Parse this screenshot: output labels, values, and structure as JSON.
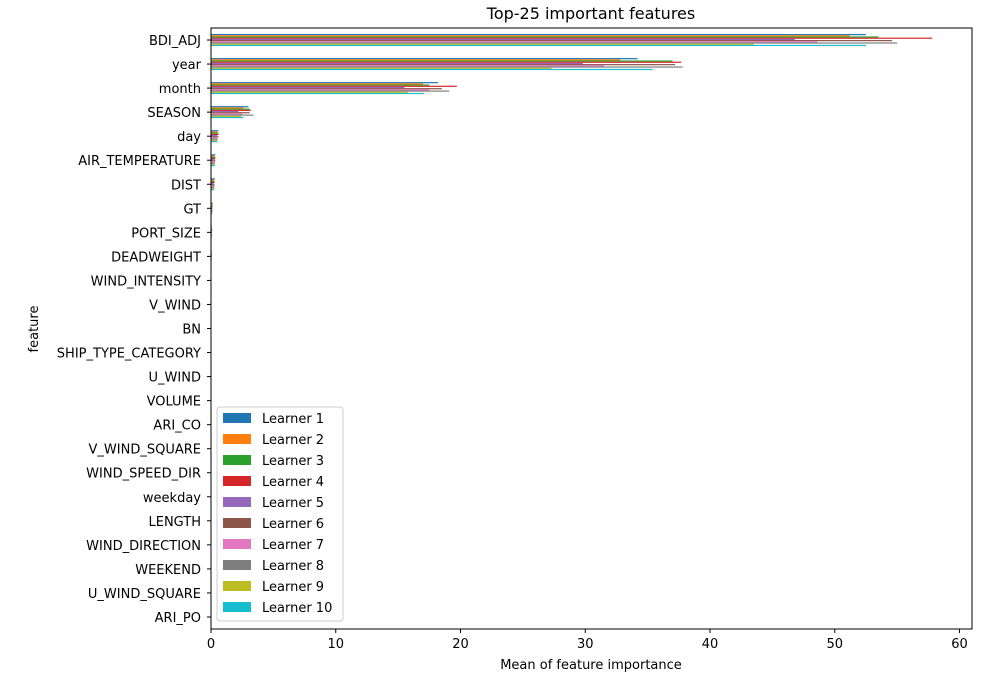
{
  "chart_data": {
    "type": "bar",
    "orientation": "horizontal",
    "title": "Top-25 important features",
    "xlabel": "Mean of feature importance",
    "ylabel": "feature",
    "xlim": [
      0,
      61
    ],
    "xticks": [
      0,
      10,
      20,
      30,
      40,
      50,
      60
    ],
    "grid": false,
    "legend_position": "lower-left",
    "categories": [
      "BDI_ADJ",
      "year",
      "month",
      "SEASON",
      "day",
      "AIR_TEMPERATURE",
      "DIST",
      "GT",
      "PORT_SIZE",
      "DEADWEIGHT",
      "WIND_INTENSITY",
      "V_WIND",
      "BN",
      "SHIP_TYPE_CATEGORY",
      "U_WIND",
      "VOLUME",
      "ARI_CO",
      "V_WIND_SQUARE",
      "WIND_SPEED_DIR",
      "weekday",
      "LENGTH",
      "WIND_DIRECTION",
      "WEEKEND",
      "U_WIND_SQUARE",
      "ARI_PO"
    ],
    "series": [
      {
        "name": "Learner 1",
        "color": "#1f77b4",
        "values": [
          52.5,
          34.2,
          18.2,
          3.0,
          0.6,
          0.35,
          0.3,
          0.12,
          0.08,
          0.06,
          0.03,
          0.02,
          0.02,
          0.01,
          0.01,
          0.01,
          0.01,
          0.01,
          0.01,
          0.01,
          0.01,
          0.0,
          0.0,
          0.0,
          0.0
        ]
      },
      {
        "name": "Learner 2",
        "color": "#ff7f0e",
        "values": [
          51.2,
          32.8,
          17.0,
          2.6,
          0.5,
          0.3,
          0.25,
          0.15,
          0.06,
          0.05,
          0.03,
          0.02,
          0.02,
          0.01,
          0.01,
          0.01,
          0.01,
          0.01,
          0.01,
          0.01,
          0.01,
          0.0,
          0.0,
          0.0,
          0.0
        ]
      },
      {
        "name": "Learner 3",
        "color": "#2ca02c",
        "values": [
          53.5,
          37.0,
          17.5,
          3.1,
          0.6,
          0.35,
          0.28,
          0.12,
          0.08,
          0.06,
          0.03,
          0.02,
          0.02,
          0.01,
          0.01,
          0.01,
          0.01,
          0.01,
          0.01,
          0.01,
          0.01,
          0.0,
          0.0,
          0.0,
          0.0
        ]
      },
      {
        "name": "Learner 4",
        "color": "#d62728",
        "values": [
          57.8,
          37.7,
          19.7,
          3.2,
          0.6,
          0.35,
          0.3,
          0.12,
          0.1,
          0.07,
          0.03,
          0.02,
          0.02,
          0.01,
          0.01,
          0.01,
          0.01,
          0.01,
          0.01,
          0.01,
          0.01,
          0.0,
          0.0,
          0.0,
          0.0
        ]
      },
      {
        "name": "Learner 5",
        "color": "#9467bd",
        "values": [
          46.8,
          29.8,
          15.5,
          2.2,
          0.5,
          0.3,
          0.22,
          0.1,
          0.06,
          0.05,
          0.03,
          0.02,
          0.02,
          0.01,
          0.01,
          0.01,
          0.01,
          0.01,
          0.01,
          0.01,
          0.01,
          0.0,
          0.0,
          0.0,
          0.0
        ]
      },
      {
        "name": "Learner 6",
        "color": "#8c564b",
        "values": [
          54.6,
          37.2,
          18.5,
          3.1,
          0.6,
          0.35,
          0.3,
          0.12,
          0.08,
          0.06,
          0.03,
          0.02,
          0.02,
          0.01,
          0.01,
          0.01,
          0.01,
          0.01,
          0.01,
          0.01,
          0.01,
          0.0,
          0.0,
          0.0,
          0.0
        ]
      },
      {
        "name": "Learner 7",
        "color": "#e377c2",
        "values": [
          48.6,
          31.5,
          17.5,
          2.5,
          0.5,
          0.3,
          0.25,
          0.1,
          0.06,
          0.05,
          0.03,
          0.02,
          0.02,
          0.01,
          0.01,
          0.01,
          0.01,
          0.01,
          0.01,
          0.01,
          0.01,
          0.0,
          0.0,
          0.0,
          0.0
        ]
      },
      {
        "name": "Learner 8",
        "color": "#7f7f7f",
        "values": [
          55.0,
          37.8,
          19.1,
          3.4,
          0.55,
          0.33,
          0.28,
          0.12,
          0.08,
          0.06,
          0.03,
          0.02,
          0.02,
          0.01,
          0.01,
          0.01,
          0.01,
          0.01,
          0.01,
          0.01,
          0.01,
          0.0,
          0.0,
          0.0,
          0.0
        ]
      },
      {
        "name": "Learner 9",
        "color": "#bcbd22",
        "values": [
          43.5,
          27.3,
          15.8,
          2.4,
          0.5,
          0.3,
          0.25,
          0.1,
          0.06,
          0.05,
          0.03,
          0.02,
          0.02,
          0.01,
          0.01,
          0.01,
          0.01,
          0.01,
          0.01,
          0.01,
          0.01,
          0.0,
          0.0,
          0.0,
          0.0
        ]
      },
      {
        "name": "Learner 10",
        "color": "#17becf",
        "values": [
          52.5,
          35.4,
          17.1,
          2.6,
          0.5,
          0.3,
          0.25,
          0.1,
          0.06,
          0.05,
          0.03,
          0.02,
          0.02,
          0.01,
          0.01,
          0.01,
          0.01,
          0.01,
          0.01,
          0.01,
          0.01,
          0.0,
          0.0,
          0.0,
          0.0
        ]
      }
    ]
  }
}
